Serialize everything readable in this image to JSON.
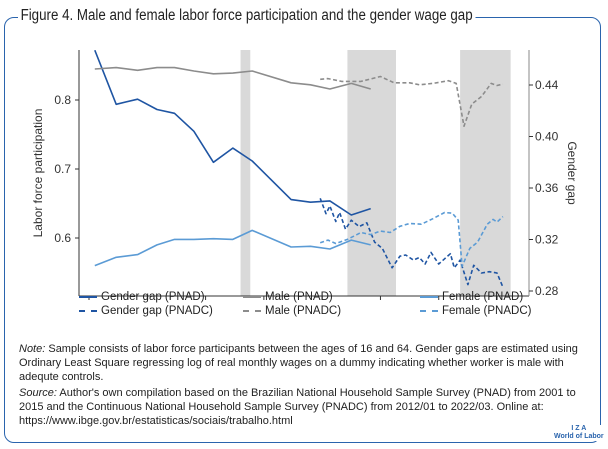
{
  "title": "Figure 4. Male and female labor force participation and the gender wage gap",
  "chart_data": {
    "type": "line",
    "title": "Figure 4. Male and female labor force participation and the gender wage gap",
    "xlabel": "",
    "ylabel_left": "Labor force participation",
    "ylabel_right": "Gender gap",
    "x_ticks": [
      2001,
      2004,
      2007,
      2010,
      2013,
      2016,
      2019,
      2022
    ],
    "y_left_ticks": [
      0.6,
      0.7,
      0.8
    ],
    "y_right_ticks": [
      0.28,
      0.32,
      0.36,
      0.4,
      0.44
    ],
    "y_left_tick_labels": [
      "0.6",
      "0.7",
      "0.8"
    ],
    "y_right_tick_labels": [
      "0.28",
      "0.32",
      "0.36",
      "0.40",
      "0.44"
    ],
    "xlim": [
      2000.5,
      2024.2
    ],
    "ylim_left": [
      0.515,
      0.872
    ],
    "ylim_right": [
      0.276,
      0.467
    ],
    "shaded_periods": [
      [
        2008.8,
        2009.3
      ],
      [
        2014.3,
        2016.8
      ],
      [
        2020.1,
        2022.7
      ]
    ],
    "grid": false,
    "legend_position": "bottom",
    "series": [
      {
        "name": "Gender gap (PNAD)",
        "axis": "right",
        "style": "solid",
        "color": "#1f55a3",
        "x": [
          2001.3,
          2002.4,
          2003.5,
          2004.5,
          2005.4,
          2006.4,
          2007.4,
          2008.4,
          2009.4,
          2011.4,
          2012.4,
          2013.4,
          2014.5,
          2015.5
        ],
        "y": [
          0.467,
          0.425,
          0.429,
          0.421,
          0.418,
          0.404,
          0.38,
          0.391,
          0.381,
          0.351,
          0.349,
          0.35,
          0.339,
          0.344
        ]
      },
      {
        "name": "Gender gap (PNADC)",
        "axis": "right",
        "style": "dashed",
        "color": "#1f55a3",
        "x": [
          2012.9,
          2013.2,
          2013.4,
          2013.7,
          2013.9,
          2014.2,
          2014.5,
          2014.9,
          2015.3,
          2015.7,
          2016.1,
          2016.6,
          2017.0,
          2017.3,
          2017.7,
          2018.0,
          2018.3,
          2018.6,
          2019.0,
          2019.3,
          2019.6,
          2019.8,
          2020.1,
          2020.5,
          2020.8,
          2021.2,
          2021.6,
          2022.0,
          2022.3
        ],
        "y": [
          0.352,
          0.34,
          0.346,
          0.334,
          0.341,
          0.328,
          0.335,
          0.33,
          0.333,
          0.318,
          0.313,
          0.298,
          0.307,
          0.308,
          0.304,
          0.306,
          0.301,
          0.31,
          0.301,
          0.305,
          0.309,
          0.298,
          0.304,
          0.285,
          0.3,
          0.294,
          0.295,
          0.294,
          0.283
        ]
      },
      {
        "name": "Male (PNAD)",
        "axis": "left",
        "style": "solid",
        "color": "#8c8c8c",
        "x": [
          2001.3,
          2002.4,
          2003.5,
          2004.5,
          2005.4,
          2006.4,
          2007.4,
          2008.4,
          2009.4,
          2011.4,
          2012.4,
          2013.4,
          2014.5,
          2015.5
        ],
        "y": [
          0.845,
          0.847,
          0.843,
          0.847,
          0.847,
          0.842,
          0.838,
          0.839,
          0.842,
          0.825,
          0.822,
          0.816,
          0.824,
          0.816
        ]
      },
      {
        "name": "Male (PNADC)",
        "axis": "left",
        "style": "dashed",
        "color": "#8c8c8c",
        "x": [
          2012.9,
          2013.3,
          2014.0,
          2015.0,
          2016.0,
          2016.7,
          2017.5,
          2018.0,
          2018.7,
          2019.5,
          2019.9,
          2020.3,
          2020.7,
          2021.2,
          2021.7,
          2022.0,
          2022.3
        ],
        "y": [
          0.83,
          0.831,
          0.827,
          0.827,
          0.834,
          0.825,
          0.825,
          0.822,
          0.824,
          0.828,
          0.824,
          0.762,
          0.794,
          0.805,
          0.824,
          0.821,
          0.823
        ]
      },
      {
        "name": "Female (PNAD)",
        "axis": "left",
        "style": "solid",
        "color": "#5b9bd5",
        "x": [
          2001.3,
          2002.4,
          2003.5,
          2004.5,
          2005.4,
          2006.4,
          2007.4,
          2008.4,
          2009.4,
          2011.4,
          2012.4,
          2013.4,
          2014.5,
          2015.5
        ],
        "y": [
          0.56,
          0.572,
          0.576,
          0.59,
          0.598,
          0.598,
          0.599,
          0.598,
          0.611,
          0.587,
          0.588,
          0.584,
          0.597,
          0.59
        ]
      },
      {
        "name": "Female (PNADC)",
        "axis": "left",
        "style": "dashed",
        "color": "#5b9bd5",
        "x": [
          2012.9,
          2013.3,
          2013.7,
          2014.3,
          2015.0,
          2015.5,
          2016.0,
          2016.5,
          2017.0,
          2017.5,
          2018.1,
          2018.7,
          2019.3,
          2019.7,
          2020.0,
          2020.2,
          2020.6,
          2021.0,
          2021.5,
          2021.8,
          2022.0,
          2022.3
        ],
        "y": [
          0.593,
          0.597,
          0.592,
          0.598,
          0.608,
          0.605,
          0.61,
          0.608,
          0.617,
          0.621,
          0.62,
          0.628,
          0.637,
          0.636,
          0.626,
          0.559,
          0.585,
          0.594,
          0.62,
          0.627,
          0.623,
          0.631
        ]
      }
    ]
  },
  "legend": [
    {
      "label": "Gender gap (PNAD)",
      "color": "#1f55a3",
      "style": "solid"
    },
    {
      "label": "Male (PNAD)",
      "color": "#8c8c8c",
      "style": "solid"
    },
    {
      "label": "Female (PNAD)",
      "color": "#5b9bd5",
      "style": "solid"
    },
    {
      "label": "Gender gap (PNADC)",
      "color": "#1f55a3",
      "style": "dashed"
    },
    {
      "label": "Male (PNADC)",
      "color": "#8c8c8c",
      "style": "dashed"
    },
    {
      "label": "Female (PNADC)",
      "color": "#5b9bd5",
      "style": "dashed"
    }
  ],
  "note": {
    "label": "Note:",
    "text": " Sample consists of labor force participants between the ages of 16 and 64. Gender gaps are estimated using Ordinary Least Square regressing log of real monthly wages on a dummy indicating whether worker is male with adequte controls."
  },
  "source": {
    "label": "Source:",
    "text": " Author's own compilation based on the Brazilian National Household Sample Survey (PNAD) from 2001 to 2015 and the Continuous National Household Sample Survey (PNADC) from 2012/01 to 2022/03. Online at: https://www.ibge.gov.br/estatisticas/sociais/trabalho.html"
  },
  "logo": {
    "line1": "I Z A",
    "line2": "World of Labor"
  },
  "colors": {
    "frame": "#2a64ad",
    "shade": "#d9d9d9"
  }
}
